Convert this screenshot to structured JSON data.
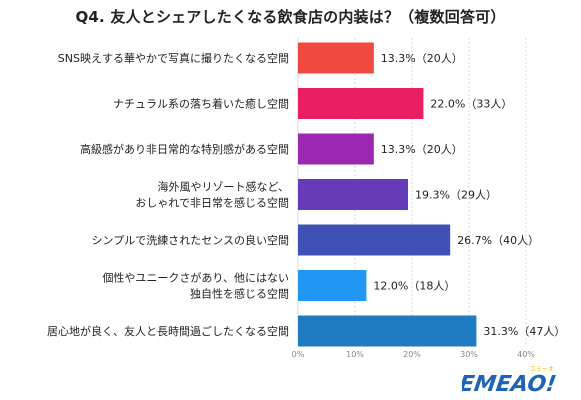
{
  "title": "Q4. 友人とシェアしたくなる飲食店の内装は？（複数回答可）",
  "logo": {
    "text": "EMEAO!",
    "small": "エミーオ"
  },
  "chart_data": {
    "type": "bar",
    "orientation": "horizontal",
    "title": "Q4. 友人とシェアしたくなる飲食店の内装は？（複数回答可）",
    "categories": [
      [
        "SNS映えする華やかで写真に撮りたくなる空間"
      ],
      [
        "ナチュラル系の落ち着いた癒し空間"
      ],
      [
        "高級感があり非日常的な特別感がある空間"
      ],
      [
        "海外風やリゾート感など、",
        "おしゃれで非日常を感じる空間"
      ],
      [
        "シンプルで洗練されたセンスの良い空間"
      ],
      [
        "個性やユニークさがあり、他にはない",
        "独自性を感じる空間"
      ],
      [
        "居心地が良く、友人と長時間過ごしたくなる空間"
      ]
    ],
    "values": [
      13.3,
      22.0,
      13.3,
      19.3,
      26.7,
      12.0,
      31.3
    ],
    "labels": [
      "13.3%（20人）",
      "22.0%（33人）",
      "13.3%（20人）",
      "19.3%（29人）",
      "26.7%（40人）",
      "12.0%（18人）",
      "31.3%（47人）"
    ],
    "colors": [
      "#f04a3f",
      "#e91e63",
      "#9c27b0",
      "#673ab7",
      "#3f51b5",
      "#2196f3",
      "#1e7bbf"
    ],
    "xlim": [
      0,
      40
    ],
    "xticks": [
      "0%",
      "10%",
      "20%",
      "30%",
      "40%"
    ],
    "grid": true
  }
}
